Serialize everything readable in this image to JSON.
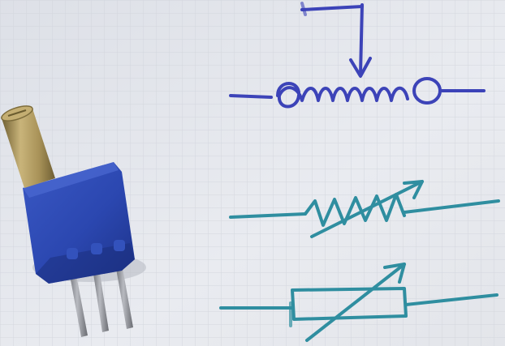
{
  "scene": {
    "description_free": true,
    "colors": {
      "paper": "#e7e9ef",
      "grid_line": "#cfd2da",
      "blue_ink": "#3c43b8",
      "teal_ink": "#2f8ea0",
      "trimpot_body": "#2b47b0",
      "trimpot_shadow": "#1c2f7e",
      "brass": "#a89258",
      "pin_metal": "#8e9097"
    },
    "objects": [
      {
        "name": "trimmer-potentiometer",
        "kind": "photo-object"
      },
      {
        "name": "potentiometer-symbol-drawing",
        "kind": "hand-drawn-symbol",
        "ink": "blue"
      },
      {
        "name": "variable-resistor-zigzag-drawing",
        "kind": "hand-drawn-symbol",
        "ink": "teal"
      },
      {
        "name": "variable-resistor-box-drawing",
        "kind": "hand-drawn-symbol",
        "ink": "teal"
      }
    ]
  }
}
